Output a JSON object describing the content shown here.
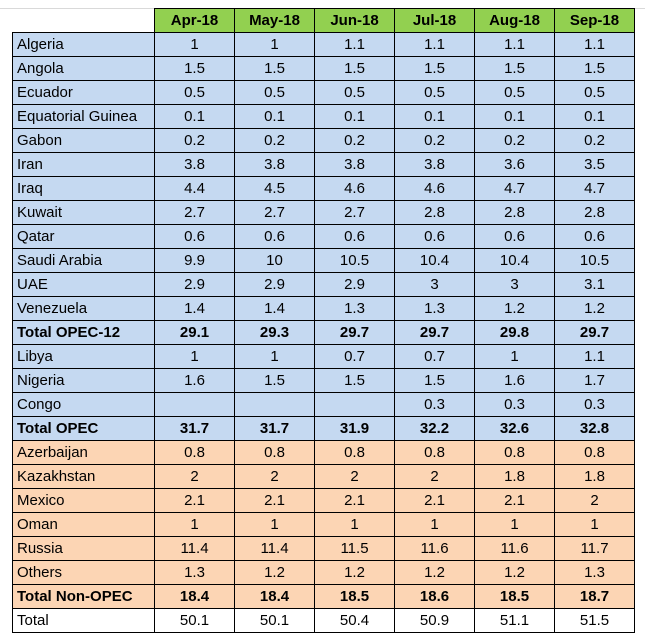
{
  "columns": [
    "Apr-18",
    "May-18",
    "Jun-18",
    "Jul-18",
    "Aug-18",
    "Sep-18"
  ],
  "rows": [
    {
      "name": "Algeria",
      "values": [
        "1",
        "1",
        "1.1",
        "1.1",
        "1.1",
        "1.1"
      ],
      "group": "opec"
    },
    {
      "name": "Angola",
      "values": [
        "1.5",
        "1.5",
        "1.5",
        "1.5",
        "1.5",
        "1.5"
      ],
      "group": "opec"
    },
    {
      "name": "Ecuador",
      "values": [
        "0.5",
        "0.5",
        "0.5",
        "0.5",
        "0.5",
        "0.5"
      ],
      "group": "opec"
    },
    {
      "name": "Equatorial Guinea",
      "values": [
        "0.1",
        "0.1",
        "0.1",
        "0.1",
        "0.1",
        "0.1"
      ],
      "group": "opec"
    },
    {
      "name": "Gabon",
      "values": [
        "0.2",
        "0.2",
        "0.2",
        "0.2",
        "0.2",
        "0.2"
      ],
      "group": "opec"
    },
    {
      "name": "Iran",
      "values": [
        "3.8",
        "3.8",
        "3.8",
        "3.8",
        "3.6",
        "3.5"
      ],
      "group": "opec"
    },
    {
      "name": "Iraq",
      "values": [
        "4.4",
        "4.5",
        "4.6",
        "4.6",
        "4.7",
        "4.7"
      ],
      "group": "opec"
    },
    {
      "name": "Kuwait",
      "values": [
        "2.7",
        "2.7",
        "2.7",
        "2.8",
        "2.8",
        "2.8"
      ],
      "group": "opec"
    },
    {
      "name": "Qatar",
      "values": [
        "0.6",
        "0.6",
        "0.6",
        "0.6",
        "0.6",
        "0.6"
      ],
      "group": "opec"
    },
    {
      "name": "Saudi Arabia",
      "values": [
        "9.9",
        "10",
        "10.5",
        "10.4",
        "10.4",
        "10.5"
      ],
      "group": "opec"
    },
    {
      "name": "UAE",
      "values": [
        "2.9",
        "2.9",
        "2.9",
        "3",
        "3",
        "3.1"
      ],
      "group": "opec"
    },
    {
      "name": "Venezuela",
      "values": [
        "1.4",
        "1.4",
        "1.3",
        "1.3",
        "1.2",
        "1.2"
      ],
      "group": "opec"
    },
    {
      "name": "Total OPEC-12",
      "values": [
        "29.1",
        "29.3",
        "29.7",
        "29.7",
        "29.8",
        "29.7"
      ],
      "group": "opec",
      "bold": true
    },
    {
      "name": "Libya",
      "values": [
        "1",
        "1",
        "0.7",
        "0.7",
        "1",
        "1.1"
      ],
      "group": "opec"
    },
    {
      "name": "Nigeria",
      "values": [
        "1.6",
        "1.5",
        "1.5",
        "1.5",
        "1.6",
        "1.7"
      ],
      "group": "opec"
    },
    {
      "name": "Congo",
      "values": [
        "",
        "",
        "",
        "0.3",
        "0.3",
        "0.3"
      ],
      "group": "opec"
    },
    {
      "name": "Total OPEC",
      "values": [
        "31.7",
        "31.7",
        "31.9",
        "32.2",
        "32.6",
        "32.8"
      ],
      "group": "opec",
      "bold": true
    },
    {
      "name": "Azerbaijan",
      "values": [
        "0.8",
        "0.8",
        "0.8",
        "0.8",
        "0.8",
        "0.8"
      ],
      "group": "nonopec"
    },
    {
      "name": "Kazakhstan",
      "values": [
        "2",
        "2",
        "2",
        "2",
        "1.8",
        "1.8"
      ],
      "group": "nonopec"
    },
    {
      "name": "Mexico",
      "values": [
        "2.1",
        "2.1",
        "2.1",
        "2.1",
        "2.1",
        "2"
      ],
      "group": "nonopec"
    },
    {
      "name": "Oman",
      "values": [
        "1",
        "1",
        "1",
        "1",
        "1",
        "1"
      ],
      "group": "nonopec"
    },
    {
      "name": "Russia",
      "values": [
        "11.4",
        "11.4",
        "11.5",
        "11.6",
        "11.6",
        "11.7"
      ],
      "group": "nonopec"
    },
    {
      "name": "Others",
      "values": [
        "1.3",
        "1.2",
        "1.2",
        "1.2",
        "1.2",
        "1.3"
      ],
      "group": "nonopec"
    },
    {
      "name": "Total Non-OPEC",
      "values": [
        "18.4",
        "18.4",
        "18.5",
        "18.6",
        "18.5",
        "18.7"
      ],
      "group": "nonopec",
      "bold": true
    },
    {
      "name": "Total",
      "values": [
        "50.1",
        "50.1",
        "50.4",
        "50.9",
        "51.1",
        "51.5"
      ],
      "group": "total"
    }
  ],
  "colors": {
    "header_bg": "#92d050",
    "opec_bg": "#c5d9f1",
    "nonopec_bg": "#fcd5b4",
    "total_bg": "#ffffff"
  }
}
